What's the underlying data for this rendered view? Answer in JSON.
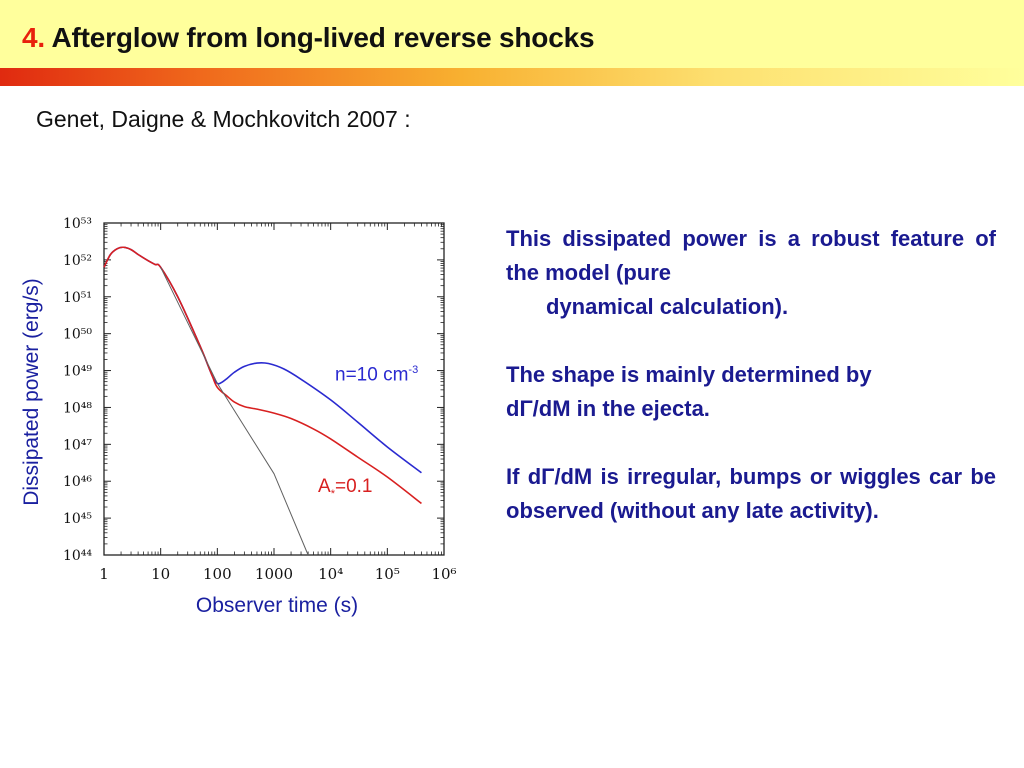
{
  "slide": {
    "number": "4.",
    "title": "Afterglow from long-lived reverse shocks",
    "citation": "Genet, Daigne & Mochkovitch 2007 :"
  },
  "colors": {
    "header_bg": "#ffff9c",
    "title_number": "#e8200c",
    "text_blue": "#1a1a90",
    "series_blue": "#2a2ad0",
    "series_red": "#d82020"
  },
  "chart_data": {
    "type": "line",
    "xlabel": "Observer time (s)",
    "ylabel": "Dissipated power (erg/s)",
    "xscale": "log",
    "yscale": "log",
    "xlim": [
      1,
      1000000
    ],
    "ylim": [
      1e+44,
      1e+53
    ],
    "x_ticks": [
      "1",
      "10",
      "100",
      "1000",
      "10⁴",
      "10⁵",
      "10⁶"
    ],
    "y_ticks": [
      "10⁴⁴",
      "10⁴⁵",
      "10⁴⁶",
      "10⁴⁷",
      "10⁴⁸",
      "10⁴⁹",
      "10⁵⁰",
      "10⁵¹",
      "10⁵²",
      "10⁵³"
    ],
    "series": [
      {
        "name": "n=10 cm-3",
        "label_main": "n=10 cm",
        "label_sup": "-3",
        "color": "#2a2ad0",
        "x": [
          1,
          1.3,
          1.7,
          2.2,
          3,
          4,
          6,
          8,
          10,
          20,
          50,
          80,
          100,
          120,
          150,
          200,
          300,
          500,
          800,
          1500,
          3000,
          10000,
          30000,
          100000,
          400000
        ],
        "y": [
          6.3e+51,
          1.4e+52,
          2e+52,
          2.2e+52,
          1.9e+52,
          1.4e+52,
          9.5e+51,
          7.5e+51,
          6.3e+51,
          1e+51,
          4.5e+49,
          7.6e+48,
          4.5e+48,
          4.8e+48,
          6.2e+48,
          9e+48,
          1.3e+49,
          1.6e+49,
          1.55e+49,
          1.1e+49,
          5.8e+48,
          1.6e+48,
          4e+47,
          8.5e+46,
          1.7e+46
        ]
      },
      {
        "name": "A*=0.1",
        "label_main": "A",
        "label_sub": "*",
        "label_rest": "=0.1",
        "color": "#d82020",
        "x": [
          1,
          1.3,
          1.7,
          2.2,
          3,
          4,
          6,
          8,
          10,
          20,
          50,
          80,
          100,
          150,
          200,
          300,
          500,
          1000,
          2000,
          5000,
          10000,
          30000,
          100000,
          400000
        ],
        "y": [
          6.3e+51,
          1.4e+52,
          2e+52,
          2.2e+52,
          1.9e+52,
          1.4e+52,
          9.5e+51,
          7.5e+51,
          6.3e+51,
          1e+51,
          4.5e+49,
          7.6e+48,
          3.5e+48,
          2e+48,
          1.4e+48,
          1.05e+48,
          9e+47,
          7e+47,
          5e+47,
          2.6e+47,
          1.4e+47,
          4.5e+46,
          1.3e+46,
          2.5e+45
        ]
      },
      {
        "name": "",
        "color": "#606060",
        "x": [
          10,
          100,
          1000,
          4000
        ],
        "y": [
          6.3e+51,
          4.5e+48,
          1.6e+46,
          1e+44
        ]
      }
    ]
  },
  "side_text": {
    "p1_a": "This dissipated power is a robust feature of the model (pure",
    "p1_b": "dynamical calculation).",
    "p2_a": "The shape is mainly determined by",
    "p2_b": "dΓ/dM in the ejecta.",
    "p3": "If dΓ/dM is irregular, bumps or wiggles car be observed (without any late activity)."
  }
}
